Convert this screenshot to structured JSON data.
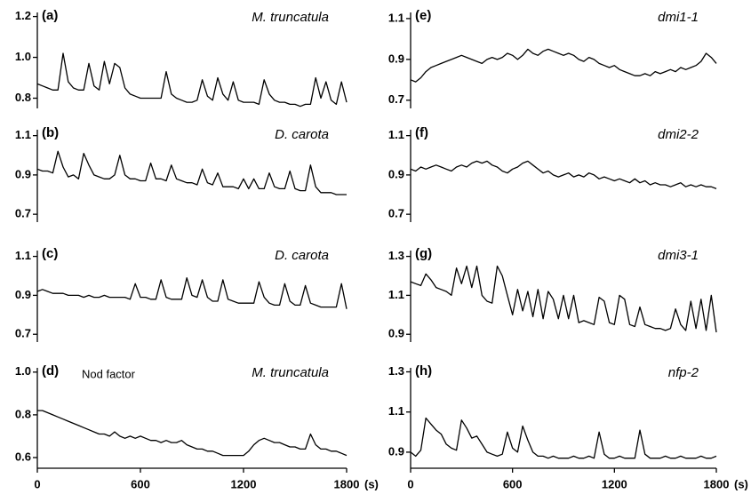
{
  "chart_data": [
    {
      "type": "line",
      "panel_label": "(a)",
      "title": "M. truncatula",
      "color": "#000000",
      "xlim": [
        0,
        1800
      ],
      "ylim": [
        0.75,
        1.22
      ],
      "yticks": [
        1.2,
        {
          "value": 1,
          "label": "1.0"
        },
        0.8
      ],
      "x": [
        0,
        30,
        60,
        90,
        120,
        150,
        180,
        210,
        240,
        270,
        300,
        330,
        360,
        390,
        420,
        450,
        480,
        510,
        540,
        570,
        600,
        630,
        660,
        690,
        720,
        750,
        780,
        810,
        840,
        870,
        900,
        930,
        960,
        990,
        1020,
        1050,
        1080,
        1110,
        1140,
        1170,
        1200,
        1230,
        1260,
        1290,
        1320,
        1350,
        1380,
        1410,
        1440,
        1470,
        1500,
        1530,
        1560,
        1590,
        1620,
        1650,
        1680,
        1710,
        1740,
        1770,
        1800
      ],
      "values": [
        0.87,
        0.86,
        0.85,
        0.84,
        0.84,
        1.02,
        0.88,
        0.85,
        0.84,
        0.84,
        0.97,
        0.86,
        0.84,
        0.98,
        0.87,
        0.97,
        0.95,
        0.85,
        0.82,
        0.81,
        0.8,
        0.8,
        0.8,
        0.8,
        0.8,
        0.93,
        0.82,
        0.8,
        0.79,
        0.78,
        0.78,
        0.79,
        0.89,
        0.81,
        0.79,
        0.9,
        0.82,
        0.79,
        0.88,
        0.79,
        0.78,
        0.78,
        0.78,
        0.77,
        0.89,
        0.82,
        0.79,
        0.78,
        0.78,
        0.77,
        0.77,
        0.76,
        0.77,
        0.77,
        0.9,
        0.8,
        0.88,
        0.79,
        0.77,
        0.88,
        0.78
      ]
    },
    {
      "type": "line",
      "panel_label": "(b)",
      "title": "D. carota",
      "color": "#000000",
      "xlim": [
        0,
        1800
      ],
      "ylim": [
        0.66,
        1.13
      ],
      "yticks": [
        1.1,
        0.9,
        0.7
      ],
      "x": [
        0,
        30,
        60,
        90,
        120,
        150,
        180,
        210,
        240,
        270,
        300,
        330,
        360,
        390,
        420,
        450,
        480,
        510,
        540,
        570,
        600,
        630,
        660,
        690,
        720,
        750,
        780,
        810,
        840,
        870,
        900,
        930,
        960,
        990,
        1020,
        1050,
        1080,
        1110,
        1140,
        1170,
        1200,
        1230,
        1260,
        1290,
        1320,
        1350,
        1380,
        1410,
        1440,
        1470,
        1500,
        1530,
        1560,
        1590,
        1620,
        1650,
        1680,
        1710,
        1740,
        1770,
        1800
      ],
      "values": [
        0.93,
        0.92,
        0.92,
        0.91,
        1.02,
        0.94,
        0.89,
        0.9,
        0.88,
        1.01,
        0.95,
        0.9,
        0.89,
        0.88,
        0.88,
        0.9,
        1.0,
        0.9,
        0.88,
        0.88,
        0.87,
        0.87,
        0.96,
        0.88,
        0.88,
        0.87,
        0.95,
        0.88,
        0.87,
        0.86,
        0.86,
        0.85,
        0.93,
        0.86,
        0.85,
        0.91,
        0.84,
        0.84,
        0.84,
        0.83,
        0.88,
        0.83,
        0.88,
        0.83,
        0.83,
        0.91,
        0.84,
        0.83,
        0.83,
        0.92,
        0.83,
        0.82,
        0.82,
        0.95,
        0.84,
        0.81,
        0.81,
        0.81,
        0.8,
        0.8,
        0.8
      ]
    },
    {
      "type": "line",
      "panel_label": "(c)",
      "title": "D. carota",
      "color": "#000000",
      "xlim": [
        0,
        1800
      ],
      "ylim": [
        0.66,
        1.13
      ],
      "yticks": [
        1.1,
        0.9,
        0.7
      ],
      "x": [
        0,
        30,
        60,
        90,
        120,
        150,
        180,
        210,
        240,
        270,
        300,
        330,
        360,
        390,
        420,
        450,
        480,
        510,
        540,
        570,
        600,
        630,
        660,
        690,
        720,
        750,
        780,
        810,
        840,
        870,
        900,
        930,
        960,
        990,
        1020,
        1050,
        1080,
        1110,
        1140,
        1170,
        1200,
        1230,
        1260,
        1290,
        1320,
        1350,
        1380,
        1410,
        1440,
        1470,
        1500,
        1530,
        1560,
        1590,
        1620,
        1650,
        1680,
        1710,
        1740,
        1770,
        1800
      ],
      "values": [
        0.92,
        0.93,
        0.92,
        0.91,
        0.91,
        0.91,
        0.9,
        0.9,
        0.9,
        0.89,
        0.9,
        0.89,
        0.89,
        0.9,
        0.89,
        0.89,
        0.89,
        0.89,
        0.88,
        0.96,
        0.89,
        0.89,
        0.88,
        0.88,
        0.98,
        0.89,
        0.88,
        0.88,
        0.88,
        0.99,
        0.9,
        0.89,
        0.98,
        0.89,
        0.87,
        0.87,
        0.98,
        0.88,
        0.87,
        0.86,
        0.86,
        0.86,
        0.86,
        0.97,
        0.89,
        0.86,
        0.85,
        0.85,
        0.96,
        0.87,
        0.85,
        0.85,
        0.95,
        0.86,
        0.85,
        0.84,
        0.84,
        0.84,
        0.84,
        0.96,
        0.83
      ]
    },
    {
      "type": "line",
      "panel_label": "(d)",
      "title": "M. truncatula",
      "annotation": "Nod factor",
      "color": "#000000",
      "xlim": [
        0,
        1800
      ],
      "xticks": [
        0,
        600,
        1200,
        1800
      ],
      "x_label": "(s)",
      "ylim": [
        0.55,
        1.02
      ],
      "yticks": [
        {
          "value": 1,
          "label": "1.0"
        },
        0.8,
        0.6
      ],
      "x": [
        0,
        30,
        60,
        90,
        120,
        150,
        180,
        210,
        240,
        270,
        300,
        330,
        360,
        390,
        420,
        450,
        480,
        510,
        540,
        570,
        600,
        630,
        660,
        690,
        720,
        750,
        780,
        810,
        840,
        870,
        900,
        930,
        960,
        990,
        1020,
        1050,
        1080,
        1110,
        1140,
        1170,
        1200,
        1230,
        1260,
        1290,
        1320,
        1350,
        1380,
        1410,
        1440,
        1470,
        1500,
        1530,
        1560,
        1590,
        1620,
        1650,
        1680,
        1710,
        1740,
        1770,
        1800
      ],
      "values": [
        0.82,
        0.82,
        0.81,
        0.8,
        0.79,
        0.78,
        0.77,
        0.76,
        0.75,
        0.74,
        0.73,
        0.72,
        0.71,
        0.71,
        0.7,
        0.72,
        0.7,
        0.69,
        0.7,
        0.69,
        0.7,
        0.69,
        0.68,
        0.68,
        0.67,
        0.68,
        0.67,
        0.67,
        0.68,
        0.66,
        0.65,
        0.64,
        0.64,
        0.63,
        0.63,
        0.62,
        0.61,
        0.61,
        0.61,
        0.61,
        0.61,
        0.63,
        0.66,
        0.68,
        0.69,
        0.68,
        0.67,
        0.67,
        0.66,
        0.65,
        0.65,
        0.64,
        0.64,
        0.71,
        0.66,
        0.64,
        0.64,
        0.63,
        0.63,
        0.62,
        0.61
      ]
    },
    {
      "type": "line",
      "panel_label": "(e)",
      "title": "dmi1-1",
      "color": "#000000",
      "xlim": [
        0,
        1800
      ],
      "ylim": [
        0.66,
        1.13
      ],
      "yticks": [
        1.1,
        0.9,
        0.7
      ],
      "x": [
        0,
        30,
        60,
        90,
        120,
        150,
        180,
        210,
        240,
        270,
        300,
        330,
        360,
        390,
        420,
        450,
        480,
        510,
        540,
        570,
        600,
        630,
        660,
        690,
        720,
        750,
        780,
        810,
        840,
        870,
        900,
        930,
        960,
        990,
        1020,
        1050,
        1080,
        1110,
        1140,
        1170,
        1200,
        1230,
        1260,
        1290,
        1320,
        1350,
        1380,
        1410,
        1440,
        1470,
        1500,
        1530,
        1560,
        1590,
        1620,
        1650,
        1680,
        1710,
        1740,
        1770,
        1800
      ],
      "values": [
        0.8,
        0.79,
        0.81,
        0.84,
        0.86,
        0.87,
        0.88,
        0.89,
        0.9,
        0.91,
        0.92,
        0.91,
        0.9,
        0.89,
        0.88,
        0.9,
        0.91,
        0.9,
        0.91,
        0.93,
        0.92,
        0.9,
        0.92,
        0.95,
        0.93,
        0.92,
        0.94,
        0.95,
        0.94,
        0.93,
        0.92,
        0.93,
        0.92,
        0.9,
        0.89,
        0.91,
        0.9,
        0.88,
        0.87,
        0.86,
        0.87,
        0.85,
        0.84,
        0.83,
        0.82,
        0.82,
        0.83,
        0.82,
        0.84,
        0.83,
        0.84,
        0.85,
        0.84,
        0.86,
        0.85,
        0.86,
        0.87,
        0.89,
        0.93,
        0.91,
        0.88
      ]
    },
    {
      "type": "line",
      "panel_label": "(f)",
      "title": "dmi2-2",
      "color": "#000000",
      "xlim": [
        0,
        1800
      ],
      "ylim": [
        0.66,
        1.13
      ],
      "yticks": [
        1.1,
        0.9,
        0.7
      ],
      "x": [
        0,
        30,
        60,
        90,
        120,
        150,
        180,
        210,
        240,
        270,
        300,
        330,
        360,
        390,
        420,
        450,
        480,
        510,
        540,
        570,
        600,
        630,
        660,
        690,
        720,
        750,
        780,
        810,
        840,
        870,
        900,
        930,
        960,
        990,
        1020,
        1050,
        1080,
        1110,
        1140,
        1170,
        1200,
        1230,
        1260,
        1290,
        1320,
        1350,
        1380,
        1410,
        1440,
        1470,
        1500,
        1530,
        1560,
        1590,
        1620,
        1650,
        1680,
        1710,
        1740,
        1770,
        1800
      ],
      "values": [
        0.93,
        0.92,
        0.94,
        0.93,
        0.94,
        0.95,
        0.94,
        0.93,
        0.92,
        0.94,
        0.95,
        0.94,
        0.96,
        0.97,
        0.96,
        0.97,
        0.95,
        0.94,
        0.92,
        0.91,
        0.93,
        0.94,
        0.96,
        0.97,
        0.95,
        0.93,
        0.91,
        0.92,
        0.9,
        0.89,
        0.9,
        0.91,
        0.89,
        0.9,
        0.89,
        0.91,
        0.9,
        0.88,
        0.89,
        0.88,
        0.87,
        0.88,
        0.87,
        0.86,
        0.88,
        0.86,
        0.87,
        0.85,
        0.86,
        0.85,
        0.85,
        0.84,
        0.85,
        0.86,
        0.84,
        0.85,
        0.84,
        0.85,
        0.84,
        0.84,
        0.83
      ]
    },
    {
      "type": "line",
      "panel_label": "(g)",
      "title": "dmi3-1",
      "color": "#000000",
      "xlim": [
        0,
        1800
      ],
      "ylim": [
        0.86,
        1.33
      ],
      "yticks": [
        1.3,
        1.1,
        0.9
      ],
      "x": [
        0,
        30,
        60,
        90,
        120,
        150,
        180,
        210,
        240,
        270,
        300,
        330,
        360,
        390,
        420,
        450,
        480,
        510,
        540,
        570,
        600,
        630,
        660,
        690,
        720,
        750,
        780,
        810,
        840,
        870,
        900,
        930,
        960,
        990,
        1020,
        1050,
        1080,
        1110,
        1140,
        1170,
        1200,
        1230,
        1260,
        1290,
        1320,
        1350,
        1380,
        1410,
        1440,
        1470,
        1500,
        1530,
        1560,
        1590,
        1620,
        1650,
        1680,
        1710,
        1740,
        1770,
        1800
      ],
      "values": [
        1.17,
        1.16,
        1.15,
        1.21,
        1.18,
        1.14,
        1.13,
        1.12,
        1.1,
        1.24,
        1.16,
        1.25,
        1.14,
        1.25,
        1.1,
        1.07,
        1.06,
        1.25,
        1.2,
        1.1,
        1.0,
        1.13,
        1.02,
        1.12,
        0.99,
        1.13,
        0.98,
        1.12,
        1.08,
        0.98,
        1.1,
        0.98,
        1.1,
        0.96,
        0.97,
        0.96,
        0.95,
        1.09,
        1.07,
        0.96,
        0.95,
        1.1,
        1.08,
        0.95,
        0.94,
        1.04,
        0.95,
        0.94,
        0.93,
        0.93,
        0.92,
        0.93,
        1.03,
        0.95,
        0.92,
        1.07,
        0.93,
        1.08,
        0.92,
        1.1,
        0.91
      ]
    },
    {
      "type": "line",
      "panel_label": "(h)",
      "title": "nfp-2",
      "color": "#000000",
      "xlim": [
        0,
        1800
      ],
      "xticks": [
        0,
        600,
        1200,
        1800
      ],
      "x_label": "(s)",
      "ylim": [
        0.82,
        1.32
      ],
      "yticks": [
        1.3,
        1.1,
        0.9
      ],
      "x": [
        0,
        30,
        60,
        90,
        120,
        150,
        180,
        210,
        240,
        270,
        300,
        330,
        360,
        390,
        420,
        450,
        480,
        510,
        540,
        570,
        600,
        630,
        660,
        690,
        720,
        750,
        780,
        810,
        840,
        870,
        900,
        930,
        960,
        990,
        1020,
        1050,
        1080,
        1110,
        1140,
        1170,
        1200,
        1230,
        1260,
        1290,
        1320,
        1350,
        1380,
        1410,
        1440,
        1470,
        1500,
        1530,
        1560,
        1590,
        1620,
        1650,
        1680,
        1710,
        1740,
        1770,
        1800
      ],
      "values": [
        0.9,
        0.88,
        0.91,
        1.07,
        1.04,
        1.01,
        0.99,
        0.94,
        0.92,
        0.91,
        1.06,
        1.02,
        0.97,
        0.98,
        0.94,
        0.9,
        0.89,
        0.88,
        0.89,
        1.0,
        0.92,
        0.9,
        1.03,
        0.96,
        0.9,
        0.88,
        0.88,
        0.87,
        0.88,
        0.87,
        0.87,
        0.87,
        0.88,
        0.87,
        0.87,
        0.88,
        0.87,
        1.0,
        0.89,
        0.87,
        0.87,
        0.88,
        0.87,
        0.87,
        0.87,
        1.01,
        0.89,
        0.87,
        0.87,
        0.87,
        0.88,
        0.87,
        0.87,
        0.88,
        0.87,
        0.87,
        0.87,
        0.88,
        0.87,
        0.87,
        0.88
      ]
    }
  ]
}
